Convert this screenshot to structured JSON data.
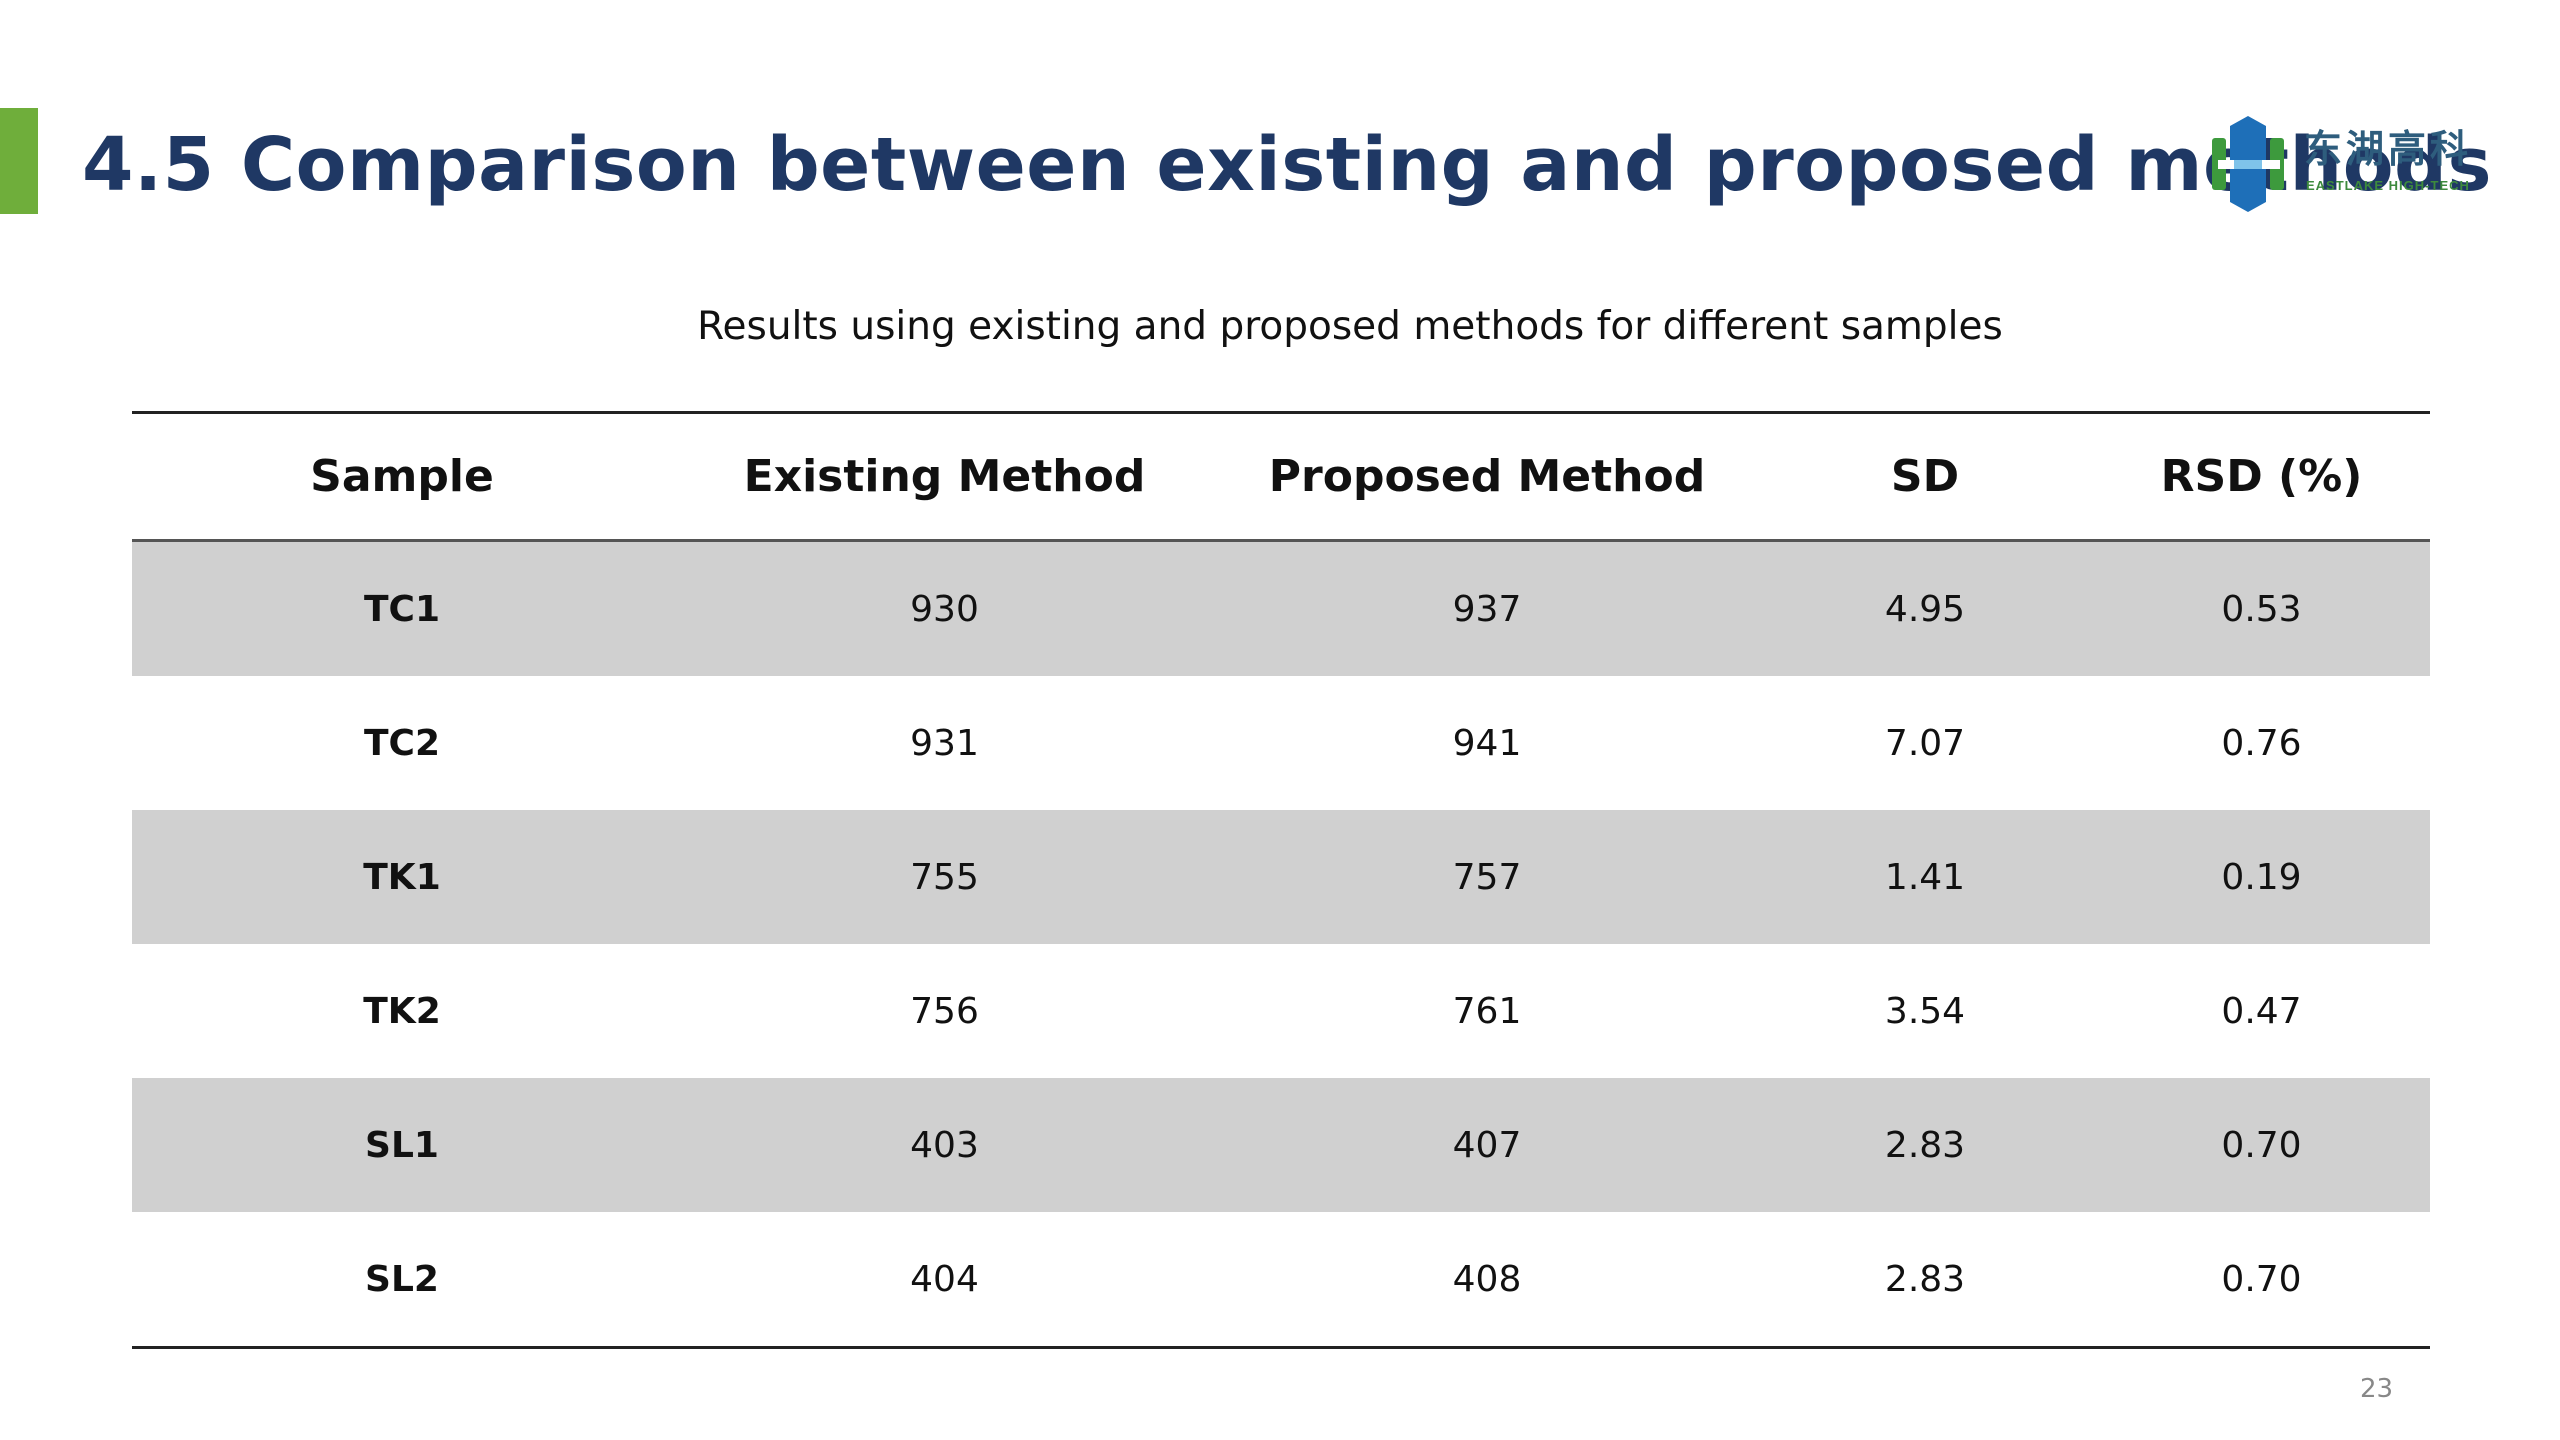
{
  "slide": {
    "title": "4.5  Comparison between existing and proposed methods",
    "accent_color": "#6fae3b",
    "title_color": "#1f3864",
    "page_number": "23"
  },
  "logo": {
    "chinese_name": "东湖高科",
    "english_name": "EASTLAKE HIGH-TECH",
    "blue": "#1e6fb8",
    "green": "#3d9a3d"
  },
  "table": {
    "caption": "Results using existing and proposed methods for different samples",
    "headers": [
      "Sample",
      "Existing Method",
      "Proposed Method",
      "SD",
      "RSD (%)"
    ],
    "shaded_row_color": "#d0d0d0",
    "rows": [
      {
        "sample": "TC1",
        "existing": "930",
        "proposed": "937",
        "sd": "4.95",
        "rsd": "0.53"
      },
      {
        "sample": "TC2",
        "existing": "931",
        "proposed": "941",
        "sd": "7.07",
        "rsd": "0.76"
      },
      {
        "sample": "TK1",
        "existing": "755",
        "proposed": "757",
        "sd": "1.41",
        "rsd": "0.19"
      },
      {
        "sample": "TK2",
        "existing": "756",
        "proposed": "761",
        "sd": "3.54",
        "rsd": "0.47"
      },
      {
        "sample": "SL1",
        "existing": "403",
        "proposed": "407",
        "sd": "2.83",
        "rsd": "0.70"
      },
      {
        "sample": "SL2",
        "existing": "404",
        "proposed": "408",
        "sd": "2.83",
        "rsd": "0.70"
      }
    ]
  }
}
